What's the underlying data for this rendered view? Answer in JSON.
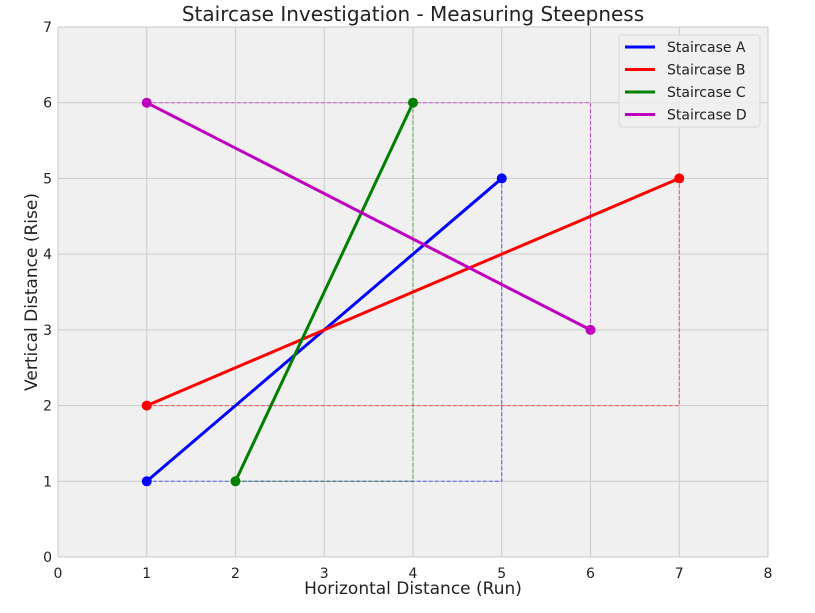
{
  "chart_data": {
    "type": "line",
    "title": "Staircase Investigation - Measuring Steepness",
    "xlabel": "Horizontal Distance (Run)",
    "ylabel": "Vertical Distance (Rise)",
    "xlim": [
      0,
      8
    ],
    "ylim": [
      0,
      7
    ],
    "xticks": [
      "0",
      "1",
      "2",
      "3",
      "4",
      "5",
      "6",
      "7",
      "8"
    ],
    "yticks": [
      "0",
      "1",
      "2",
      "3",
      "4",
      "5",
      "6",
      "7"
    ],
    "grid": true,
    "legend": "top-right",
    "background": "#f0f0f0",
    "series": [
      {
        "name": "Staircase A",
        "color": "#0000ff",
        "x": [
          1,
          5
        ],
        "y": [
          1,
          5
        ]
      },
      {
        "name": "Staircase B",
        "color": "#ff0000",
        "x": [
          1,
          7
        ],
        "y": [
          2,
          5
        ]
      },
      {
        "name": "Staircase C",
        "color": "#008000",
        "x": [
          2,
          4
        ],
        "y": [
          1,
          6
        ]
      },
      {
        "name": "Staircase D",
        "color": "#bf00bf",
        "x": [
          1,
          6
        ],
        "y": [
          6,
          3
        ]
      }
    ],
    "annotations": "dashed rise/run guides for each staircase"
  }
}
